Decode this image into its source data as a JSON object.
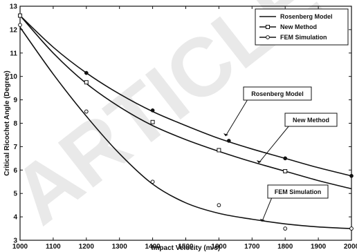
{
  "watermark": "ARTICLE",
  "chart_data": {
    "type": "line",
    "title": "",
    "xlabel": "Impact Velocity (m/s)",
    "ylabel": "Critical Ricochet Angle (Degree)",
    "xlim": [
      1000,
      2000
    ],
    "ylim": [
      3,
      13
    ],
    "x_ticks": [
      1000,
      1100,
      1200,
      1300,
      1400,
      1500,
      1600,
      1700,
      1800,
      1900,
      2000
    ],
    "y_ticks": [
      3,
      4,
      5,
      6,
      7,
      8,
      9,
      10,
      11,
      12,
      13
    ],
    "grid": false,
    "legend_position": "top-right",
    "series": [
      {
        "name": "Rosenberg Model",
        "style": "solid-line",
        "color": "#111111",
        "curve": [
          [
            1000,
            12.6
          ],
          [
            1100,
            11.25
          ],
          [
            1200,
            10.15
          ],
          [
            1300,
            9.25
          ],
          [
            1400,
            8.5
          ],
          [
            1500,
            7.9
          ],
          [
            1600,
            7.35
          ],
          [
            1700,
            6.9
          ],
          [
            1800,
            6.5
          ],
          [
            1900,
            6.1
          ],
          [
            2000,
            5.75
          ]
        ],
        "points": [
          [
            1000,
            12.6
          ],
          [
            1200,
            10.15
          ],
          [
            1400,
            8.55
          ],
          [
            1630,
            7.25
          ],
          [
            1800,
            6.5
          ],
          [
            2000,
            5.75
          ]
        ]
      },
      {
        "name": "New Method",
        "style": "square-markers",
        "color": "#111111",
        "curve": [
          [
            1000,
            12.6
          ],
          [
            1100,
            11.0
          ],
          [
            1200,
            9.7
          ],
          [
            1300,
            8.7
          ],
          [
            1400,
            7.9
          ],
          [
            1500,
            7.3
          ],
          [
            1600,
            6.8
          ],
          [
            1700,
            6.35
          ],
          [
            1800,
            5.95
          ],
          [
            1900,
            5.55
          ],
          [
            2000,
            5.2
          ]
        ],
        "points": [
          [
            1000,
            12.6
          ],
          [
            1200,
            9.75
          ],
          [
            1400,
            8.05
          ],
          [
            1600,
            6.85
          ],
          [
            1800,
            5.95
          ]
        ]
      },
      {
        "name": "FEM Simulation",
        "style": "circle-markers",
        "color": "#111111",
        "curve": [
          [
            1000,
            12.1
          ],
          [
            1100,
            10.1
          ],
          [
            1200,
            8.3
          ],
          [
            1300,
            6.7
          ],
          [
            1400,
            5.4
          ],
          [
            1500,
            4.6
          ],
          [
            1600,
            4.15
          ],
          [
            1700,
            3.9
          ],
          [
            1800,
            3.7
          ],
          [
            1900,
            3.57
          ],
          [
            2000,
            3.5
          ]
        ],
        "points": [
          [
            1000,
            12.2
          ],
          [
            1200,
            8.5
          ],
          [
            1400,
            5.5
          ],
          [
            1600,
            4.5
          ],
          [
            1800,
            3.5
          ],
          [
            2000,
            3.5
          ]
        ]
      }
    ],
    "annotations": [
      {
        "text": "Rosenberg Model",
        "target": [
          1620,
          7.45
        ]
      },
      {
        "text": "New Method",
        "target": [
          1720,
          6.3
        ]
      },
      {
        "text": "FEM Simulation",
        "target": [
          1730,
          3.8
        ]
      }
    ]
  }
}
